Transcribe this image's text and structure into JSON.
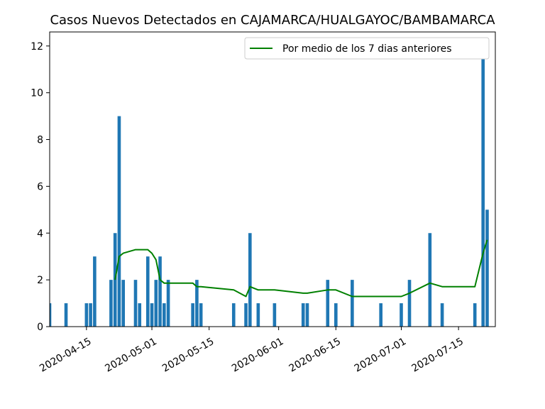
{
  "chart_data": {
    "type": "bar",
    "title": "Casos Nuevos Detectados en CAJAMARCA/HUALGAYOC/BAMBAMARCA",
    "xlabel": "",
    "ylabel": "",
    "xlim": [
      "2020-04-06",
      "2020-07-24"
    ],
    "ylim": [
      0,
      12.6
    ],
    "yticks": [
      0,
      2,
      4,
      6,
      8,
      10,
      12
    ],
    "xticks": [
      "2020-04-15",
      "2020-05-01",
      "2020-05-15",
      "2020-06-01",
      "2020-06-15",
      "2020-07-01",
      "2020-07-15"
    ],
    "legend": {
      "position": "top-right"
    },
    "colors": {
      "bars": "#1f77b4",
      "line": "#008000"
    },
    "series": [
      {
        "type": "bar",
        "x": [
          "2020-04-06",
          "2020-04-10",
          "2020-04-15",
          "2020-04-16",
          "2020-04-17",
          "2020-04-21",
          "2020-04-22",
          "2020-04-23",
          "2020-04-24",
          "2020-04-27",
          "2020-04-28",
          "2020-04-30",
          "2020-05-01",
          "2020-05-02",
          "2020-05-03",
          "2020-05-04",
          "2020-05-05",
          "2020-05-11",
          "2020-05-12",
          "2020-05-13",
          "2020-05-21",
          "2020-05-24",
          "2020-05-25",
          "2020-05-27",
          "2020-05-31",
          "2020-06-07",
          "2020-06-08",
          "2020-06-13",
          "2020-06-15",
          "2020-06-19",
          "2020-06-26",
          "2020-07-01",
          "2020-07-03",
          "2020-07-08",
          "2020-07-11",
          "2020-07-19",
          "2020-07-21",
          "2020-07-22"
        ],
        "values": [
          1,
          1,
          1,
          1,
          3,
          2,
          4,
          9,
          2,
          2,
          1,
          3,
          1,
          2,
          3,
          1,
          2,
          1,
          2,
          1,
          1,
          1,
          4,
          1,
          1,
          1,
          1,
          2,
          1,
          2,
          1,
          1,
          2,
          4,
          1,
          1,
          12,
          5
        ]
      },
      {
        "type": "line",
        "name": "Por medio de los 7 dias anteriores",
        "x": [
          "2020-04-22",
          "2020-04-23",
          "2020-04-24",
          "2020-04-27",
          "2020-04-30",
          "2020-05-01",
          "2020-05-02",
          "2020-05-03",
          "2020-05-04",
          "2020-05-11",
          "2020-05-12",
          "2020-05-13",
          "2020-05-21",
          "2020-05-24",
          "2020-05-25",
          "2020-05-27",
          "2020-05-31",
          "2020-06-07",
          "2020-06-08",
          "2020-06-13",
          "2020-06-15",
          "2020-06-19",
          "2020-06-26",
          "2020-07-01",
          "2020-07-03",
          "2020-07-08",
          "2020-07-11",
          "2020-07-19",
          "2020-07-21",
          "2020-07-22"
        ],
        "values": [
          2.0,
          3.0,
          3.14,
          3.29,
          3.29,
          3.14,
          2.86,
          2.0,
          1.86,
          1.86,
          1.71,
          1.71,
          1.57,
          1.29,
          1.71,
          1.57,
          1.57,
          1.43,
          1.43,
          1.57,
          1.57,
          1.29,
          1.29,
          1.29,
          1.43,
          1.86,
          1.71,
          1.71,
          3.14,
          3.71
        ]
      }
    ]
  }
}
